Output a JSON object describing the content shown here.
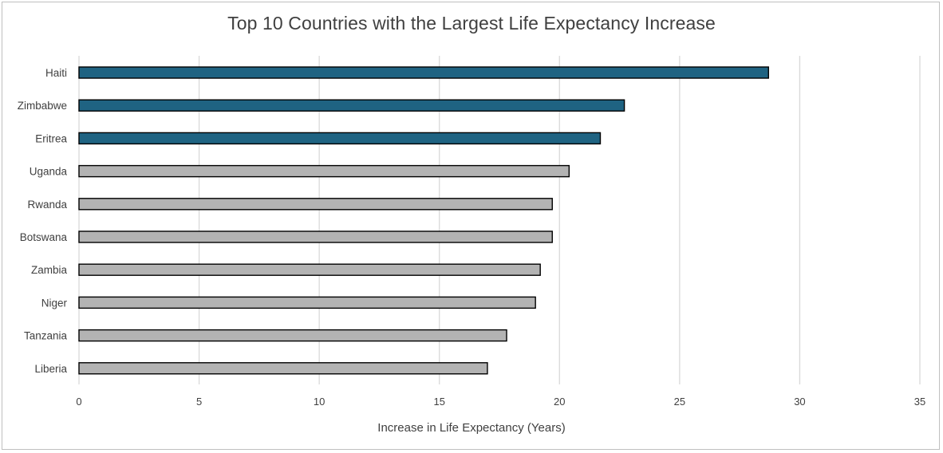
{
  "chart_data": {
    "type": "bar",
    "orientation": "horizontal",
    "title": "Top 10 Countries with the Largest Life Expectancy Increase",
    "xlabel": "Increase in Life Expectancy (Years)",
    "ylabel": "",
    "xlim": [
      0,
      35
    ],
    "xticks": [
      0,
      5,
      10,
      15,
      20,
      25,
      30,
      35
    ],
    "grid": "vertical",
    "legend": "none",
    "categories": [
      "Haiti",
      "Zimbabwe",
      "Eritrea",
      "Uganda",
      "Rwanda",
      "Botswana",
      "Zambia",
      "Niger",
      "Tanzania",
      "Liberia"
    ],
    "values": [
      28.7,
      22.7,
      21.7,
      20.4,
      19.7,
      19.7,
      19.2,
      19.0,
      17.8,
      17.0
    ],
    "highlight_top_n": 3,
    "colors": {
      "highlight": "#1f6382",
      "default": "#b3b3b3",
      "bar_outline": "#000000",
      "grid": "#d9d9d9",
      "text": "#404040"
    }
  }
}
